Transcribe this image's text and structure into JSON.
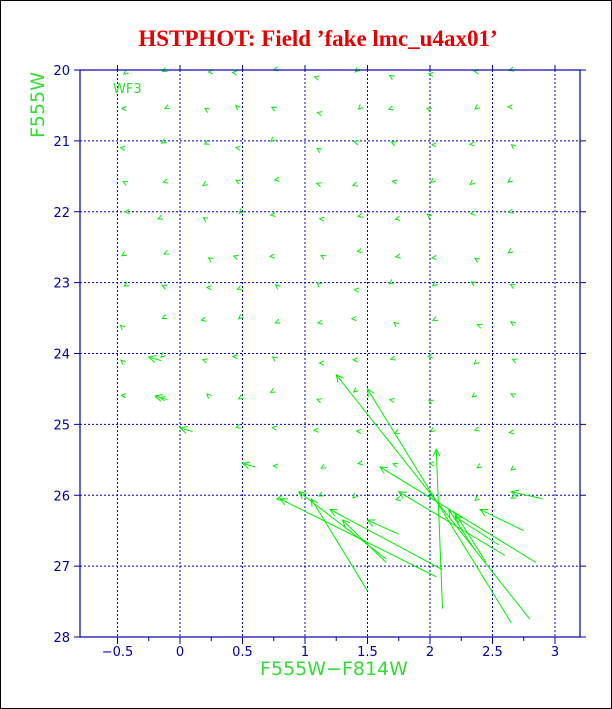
{
  "chart_data": {
    "type": "vector",
    "title": "HSTPHOT: Field ’fake lmc_u4ax01’",
    "chip_label": "WF3",
    "xlabel": "F555W−F814W",
    "ylabel": "F555W",
    "xlim": [
      -0.8,
      3.2
    ],
    "ylim": [
      28,
      20
    ],
    "y_inverted": true,
    "grid": true,
    "x_grid": [
      -0.5,
      0,
      0.5,
      1,
      1.5,
      2,
      2.5,
      3
    ],
    "y_grid": [
      21,
      22,
      23,
      24,
      25,
      26,
      27
    ],
    "x_ticks": [
      {
        "value": -0.5,
        "label": "−0.5"
      },
      {
        "value": 0,
        "label": "0"
      },
      {
        "value": 0.5,
        "label": "0.5"
      },
      {
        "value": 1,
        "label": "1"
      },
      {
        "value": 1.5,
        "label": "1.5"
      },
      {
        "value": 2,
        "label": "2"
      },
      {
        "value": 2.5,
        "label": "2.5"
      },
      {
        "value": 3,
        "label": "3"
      }
    ],
    "y_ticks": [
      {
        "value": 20,
        "label": "20"
      },
      {
        "value": 21,
        "label": "21"
      },
      {
        "value": 22,
        "label": "22"
      },
      {
        "value": 23,
        "label": "23"
      },
      {
        "value": 24,
        "label": "24"
      },
      {
        "value": 25,
        "label": "25"
      },
      {
        "value": 26,
        "label": "26"
      },
      {
        "value": 27,
        "label": "27"
      },
      {
        "value": 28,
        "label": "28"
      }
    ],
    "colors": {
      "title": "#e60000",
      "axes": "#0000aa",
      "grid": "#0000cc",
      "labels": "#33dd33",
      "vectors": "#00ee00"
    },
    "vector_grid": {
      "columns": [
        -0.45,
        -0.15,
        0.2,
        0.45,
        0.75,
        1.1,
        1.4,
        1.7,
        2.0,
        2.35,
        2.65
      ],
      "rows": [
        20.05,
        20.55,
        21.05,
        21.6,
        22.05,
        22.6,
        23.05,
        23.55,
        24.1,
        24.6,
        25.1,
        25.6,
        26.05
      ]
    },
    "arrows": [
      {
        "x0": 2.65,
        "y0": 27.8,
        "x1": 1.5,
        "y1": 24.5
      },
      {
        "x0": 2.8,
        "y0": 27.75,
        "x1": 1.25,
        "y1": 24.3
      },
      {
        "x0": 2.1,
        "y0": 27.6,
        "x1": 2.05,
        "y1": 25.35
      },
      {
        "x0": 1.5,
        "y0": 27.35,
        "x1": 1.05,
        "y1": 26.05
      },
      {
        "x0": 2.05,
        "y0": 27.15,
        "x1": 0.8,
        "y1": 26.05
      },
      {
        "x0": 2.1,
        "y0": 27.05,
        "x1": 1.2,
        "y1": 26.2
      },
      {
        "x0": 2.85,
        "y0": 26.95,
        "x1": 1.6,
        "y1": 25.6
      },
      {
        "x0": 1.65,
        "y0": 26.9,
        "x1": 0.95,
        "y1": 25.95
      },
      {
        "x0": 1.65,
        "y0": 26.95,
        "x1": 1.3,
        "y1": 26.35
      },
      {
        "x0": 2.6,
        "y0": 26.85,
        "x1": 1.75,
        "y1": 25.95
      },
      {
        "x0": 1.75,
        "y0": 26.55,
        "x1": 1.5,
        "y1": 26.35
      },
      {
        "x0": 2.35,
        "y0": 26.75,
        "x1": 2.15,
        "y1": 26.2
      },
      {
        "x0": 2.55,
        "y0": 26.7,
        "x1": 2.2,
        "y1": 26.3
      },
      {
        "x0": 2.75,
        "y0": 26.5,
        "x1": 2.4,
        "y1": 26.2
      },
      {
        "x0": 2.45,
        "y0": 26.95,
        "x1": 2.2,
        "y1": 26.25
      },
      {
        "x0": 2.9,
        "y0": 26.05,
        "x1": 2.65,
        "y1": 25.95
      },
      {
        "x0": -0.1,
        "y0": 24.65,
        "x1": -0.2,
        "y1": 24.6
      },
      {
        "x0": 0.1,
        "y0": 25.1,
        "x1": 0.0,
        "y1": 25.05
      },
      {
        "x0": 0.6,
        "y0": 25.6,
        "x1": 0.5,
        "y1": 25.55
      },
      {
        "x0": -0.15,
        "y0": 24.1,
        "x1": -0.25,
        "y1": 24.05
      }
    ]
  }
}
